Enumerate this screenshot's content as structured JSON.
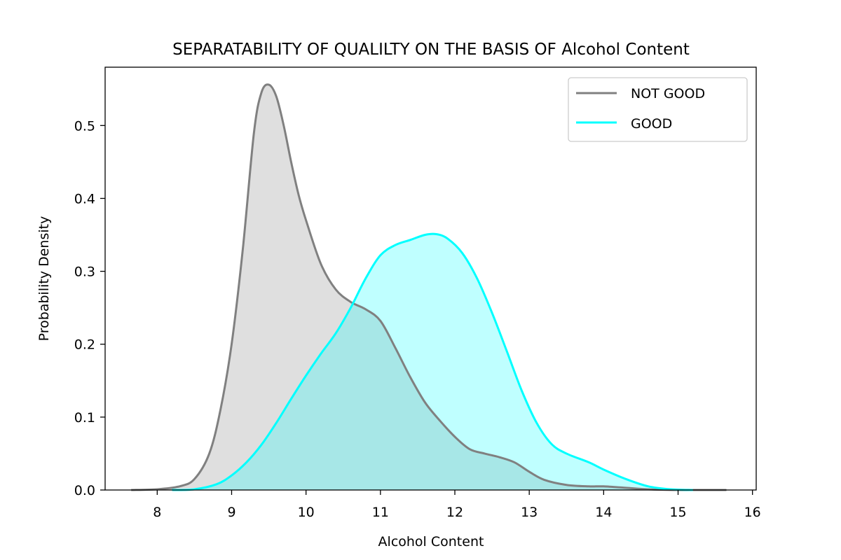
{
  "chart_data": {
    "type": "area",
    "title": "SEPARATABILITY OF QUALILTY ON THE BASIS OF Alcohol Content",
    "xlabel": "Alcohol Content",
    "ylabel": "Probability Density",
    "xlim": [
      7.3,
      16.05
    ],
    "ylim": [
      0.0,
      0.58
    ],
    "xticks": [
      8,
      9,
      10,
      11,
      12,
      13,
      14,
      15,
      16
    ],
    "yticks": [
      0.0,
      0.1,
      0.2,
      0.3,
      0.4,
      0.5
    ],
    "ytick_labels": [
      "0.0",
      "0.1",
      "0.2",
      "0.3",
      "0.4",
      "0.5"
    ],
    "grid": false,
    "legend": {
      "position": "top-right"
    },
    "series": [
      {
        "name": "NOT GOOD",
        "line_color": "#808080",
        "fill_color": "#dfdfdf",
        "x": [
          7.65,
          8.0,
          8.3,
          8.5,
          8.7,
          8.85,
          9.0,
          9.15,
          9.3,
          9.4,
          9.5,
          9.6,
          9.7,
          9.8,
          9.9,
          10.0,
          10.2,
          10.4,
          10.6,
          10.8,
          11.0,
          11.2,
          11.4,
          11.6,
          11.8,
          12.0,
          12.2,
          12.4,
          12.6,
          12.8,
          13.0,
          13.2,
          13.5,
          13.8,
          14.0,
          14.3,
          14.6,
          15.0,
          15.3,
          15.65
        ],
        "y": [
          0.0,
          0.001,
          0.005,
          0.015,
          0.05,
          0.11,
          0.2,
          0.33,
          0.49,
          0.545,
          0.556,
          0.54,
          0.5,
          0.45,
          0.405,
          0.37,
          0.31,
          0.275,
          0.258,
          0.248,
          0.232,
          0.195,
          0.155,
          0.12,
          0.095,
          0.073,
          0.056,
          0.05,
          0.045,
          0.038,
          0.025,
          0.014,
          0.007,
          0.005,
          0.005,
          0.003,
          0.001,
          0.0,
          0.0,
          0.0
        ]
      },
      {
        "name": "GOOD",
        "line_color": "#00ffff",
        "fill_color": "#00ffff",
        "fill_opacity": 0.25,
        "x": [
          8.2,
          8.5,
          8.8,
          9.0,
          9.2,
          9.4,
          9.6,
          9.8,
          10.0,
          10.2,
          10.4,
          10.6,
          10.8,
          11.0,
          11.2,
          11.4,
          11.6,
          11.75,
          11.9,
          12.1,
          12.3,
          12.5,
          12.7,
          12.9,
          13.1,
          13.3,
          13.5,
          13.8,
          14.0,
          14.3,
          14.6,
          14.9,
          15.2
        ],
        "y": [
          0.0,
          0.001,
          0.008,
          0.02,
          0.038,
          0.062,
          0.092,
          0.125,
          0.157,
          0.187,
          0.215,
          0.25,
          0.29,
          0.322,
          0.336,
          0.343,
          0.35,
          0.351,
          0.345,
          0.325,
          0.29,
          0.243,
          0.19,
          0.136,
          0.092,
          0.063,
          0.05,
          0.038,
          0.028,
          0.015,
          0.005,
          0.001,
          0.0
        ]
      }
    ]
  }
}
